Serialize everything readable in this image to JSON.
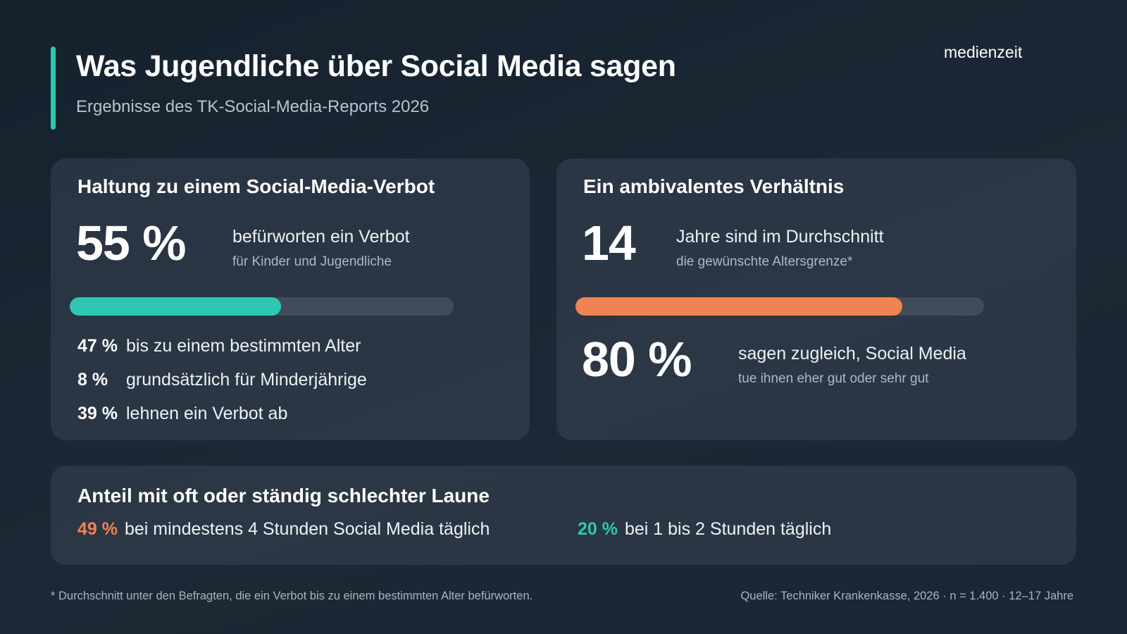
{
  "header": {
    "title": "Was Jugendliche über Social Media sagen",
    "subtitle": "Ergebnisse des TK-Social-Media-Reports 2026",
    "brand": "medienzeit"
  },
  "colors": {
    "accent_teal": "#2fc7b2",
    "accent_orange": "#ef8452"
  },
  "ban_card": {
    "title": "Haltung zu einem Social-Media-Verbot",
    "big_value": "55 %",
    "main_text": "befürworten ein Verbot",
    "sub_text": "für Kinder und Jugendliche",
    "bar_fraction": 0.55,
    "rows": [
      {
        "pct": "47 %",
        "text": "bis zu einem bestimmten Alter"
      },
      {
        "pct": "8 %",
        "text": "grundsätzlich für Minderjährige"
      },
      {
        "pct": "39 %",
        "text": "lehnen ein Verbot ab"
      }
    ]
  },
  "ambivalent_card": {
    "title": "Ein ambivalentes Verhältnis",
    "age_value": "14",
    "age_main_text": "Jahre sind im Durchschnitt",
    "age_sub_text": "die gewünschte Altersgrenze*",
    "bar_fraction": 0.8,
    "good_value": "80 %",
    "good_main_text": "sagen zugleich, Social Media",
    "good_sub_text": "tue ihnen eher gut oder sehr gut"
  },
  "mood_card": {
    "title": "Anteil mit oft oder ständig schlechter Laune",
    "items": [
      {
        "pct": "49 %",
        "text": "bei mindestens 4 Stunden Social Media täglich"
      },
      {
        "pct": "20 %",
        "text": "bei 1 bis 2 Stunden täglich"
      }
    ]
  },
  "footer": {
    "footnote": "* Durchschnitt unter den Befragten, die ein Verbot bis zu einem bestimmten Alter befürworten.",
    "source": "Quelle: Techniker Krankenkasse, 2026 · n = 1.400 · 12–17 Jahre"
  }
}
